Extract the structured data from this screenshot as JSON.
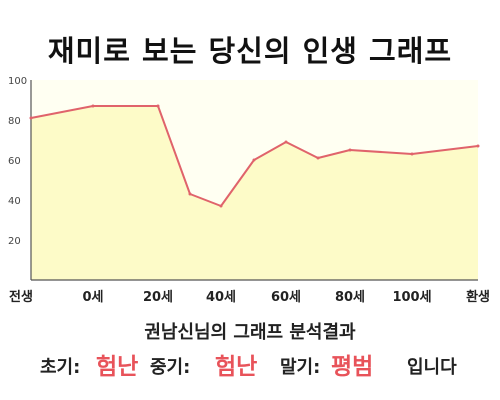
{
  "title": "재미로 보는 당신의 인생 그래프",
  "summary": "권남신님의 그래프 분석결과",
  "result": {
    "early_label": "초기:",
    "early_value": "험난",
    "middle_label": "중기:",
    "middle_value": "험난",
    "late_label": "말기:",
    "late_value": "평범",
    "ending": "입니다"
  },
  "colors": {
    "line": "#e0636b",
    "fill": "#fdfbc8",
    "highlight": "#e8535a"
  },
  "chart_data": {
    "type": "area",
    "title": "",
    "xlabel": "",
    "ylabel": "",
    "ylim": [
      0,
      100
    ],
    "yticks": [
      20,
      40,
      60,
      80,
      100
    ],
    "grid": false,
    "x_labels": [
      "전생",
      "0세",
      "20세",
      "40세",
      "60세",
      "80세",
      "100세",
      "환생"
    ],
    "series": [
      {
        "points": [
          {
            "x": "전생",
            "y": 81
          },
          {
            "x": "0세",
            "y": 87
          },
          {
            "x": "20세",
            "y": 87
          },
          {
            "x": "30세",
            "y": 43
          },
          {
            "x": "40세",
            "y": 37
          },
          {
            "x": "50세",
            "y": 60
          },
          {
            "x": "60세",
            "y": 69
          },
          {
            "x": "70세",
            "y": 61
          },
          {
            "x": "80세",
            "y": 65
          },
          {
            "x": "100세",
            "y": 63
          },
          {
            "x": "환생",
            "y": 67
          }
        ]
      }
    ]
  }
}
